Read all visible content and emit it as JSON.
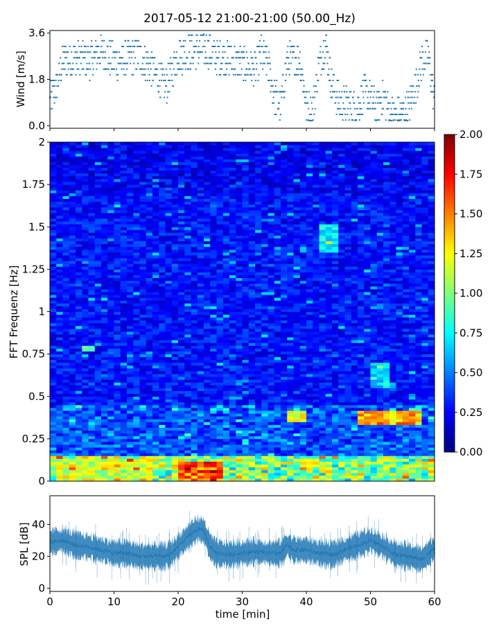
{
  "title": "2017-05-12 21:00-21:00 (50.00_Hz)",
  "colors": {
    "series": "#1f77b4",
    "colormap": [
      "#00007f",
      "#0000ff",
      "#007fff",
      "#00ffff",
      "#7fff7f",
      "#ffff00",
      "#ff7f00",
      "#ff0000",
      "#7f0000"
    ]
  },
  "chart_data": [
    {
      "type": "scatter",
      "panel": "wind",
      "ylabel": "Wind [m/s]",
      "xlabel": "",
      "xlim": [
        0,
        60
      ],
      "ylim": [
        -0.1,
        3.7
      ],
      "yticks": [
        "0.0",
        "1.8",
        "3.6"
      ],
      "ytick_values": [
        0.0,
        1.8,
        3.6
      ],
      "xticks": [
        0,
        10,
        20,
        30,
        40,
        50,
        60
      ],
      "trend": {
        "x": [
          0,
          1,
          2,
          4,
          6,
          8,
          10,
          12,
          14,
          16,
          18,
          20,
          22,
          24,
          26,
          28,
          30,
          32,
          33,
          34,
          35,
          36,
          37,
          38,
          39,
          40,
          41,
          42,
          43,
          44,
          45,
          46,
          47,
          48,
          49,
          50,
          51,
          52,
          53,
          54,
          55,
          56,
          57,
          58,
          59,
          60
        ],
        "y": [
          0.9,
          1.5,
          2.5,
          2.6,
          2.5,
          2.9,
          2.5,
          2.6,
          2.7,
          2.2,
          1.5,
          2.7,
          2.9,
          3.0,
          2.7,
          2.6,
          2.4,
          2.2,
          2.8,
          2.4,
          1.2,
          0.8,
          2.5,
          2.6,
          2.6,
          0.8,
          0.6,
          2.4,
          3.2,
          1.6,
          1.0,
          0.8,
          0.8,
          0.7,
          1.3,
          1.1,
          0.6,
          1.2,
          0.5,
          0.4,
          0.5,
          0.7,
          1.5,
          2.5,
          2.7,
          1.0
        ]
      }
    },
    {
      "type": "heatmap",
      "panel": "spectrogram",
      "ylabel": "FFT Frequenz [Hz]",
      "xlabel": "",
      "xlim": [
        0,
        60
      ],
      "ylim": [
        0,
        2
      ],
      "yticks": [
        "0",
        "0.25",
        "0.5",
        "0.75",
        "1",
        "1.25",
        "1.5",
        "1.75",
        "2"
      ],
      "ytick_values": [
        0,
        0.25,
        0.5,
        0.75,
        1,
        1.25,
        1.5,
        1.75,
        2
      ],
      "colorbar": {
        "min": 0,
        "max": 2,
        "ticks": [
          "0.00",
          "0.25",
          "0.50",
          "0.75",
          "1.00",
          "1.25",
          "1.50",
          "1.75",
          "2.00"
        ],
        "tick_values": [
          0,
          0.25,
          0.5,
          0.75,
          1,
          1.25,
          1.5,
          1.75,
          2
        ]
      },
      "features": [
        {
          "t0": 42,
          "t1": 45,
          "f0": 1.35,
          "f1": 1.52,
          "level": 0.8
        },
        {
          "t0": 20,
          "t1": 27,
          "f0": 0,
          "f1": 0.12,
          "level": 1.7
        },
        {
          "t0": 1,
          "t1": 16,
          "f0": 0,
          "f1": 0.14,
          "level": 1.2
        },
        {
          "t0": 48,
          "t1": 58,
          "f0": 0.33,
          "f1": 0.42,
          "level": 1.5
        },
        {
          "t0": 50,
          "t1": 53,
          "f0": 0.55,
          "f1": 0.7,
          "level": 0.7
        },
        {
          "t0": 37,
          "t1": 40,
          "f0": 0.35,
          "f1": 0.42,
          "level": 1.4
        },
        {
          "t0": 5,
          "t1": 7,
          "f0": 0.76,
          "f1": 0.8,
          "level": 1.0
        }
      ]
    },
    {
      "type": "area",
      "panel": "spl",
      "ylabel": "SPL [dB]",
      "xlabel": "time [min]",
      "xlim": [
        0,
        60
      ],
      "ylim": [
        -2,
        58
      ],
      "yticks": [
        "0",
        "20",
        "40"
      ],
      "ytick_values": [
        0,
        20,
        40
      ],
      "xticks": [
        "0",
        "10",
        "20",
        "30",
        "40",
        "50",
        "60"
      ],
      "xtick_values": [
        0,
        10,
        20,
        30,
        40,
        50,
        60
      ],
      "trend": {
        "x": [
          0,
          2,
          4,
          6,
          8,
          10,
          12,
          14,
          16,
          18,
          19,
          20,
          21,
          22,
          23,
          24,
          25,
          26,
          28,
          30,
          32,
          34,
          36,
          37,
          38,
          40,
          42,
          44,
          46,
          48,
          50,
          52,
          54,
          56,
          58,
          60
        ],
        "y": [
          29,
          30,
          27,
          26,
          24,
          22,
          22,
          20,
          20,
          20,
          22,
          26,
          30,
          34,
          37,
          36,
          26,
          22,
          21,
          22,
          23,
          22,
          22,
          27,
          24,
          24,
          22,
          21,
          24,
          27,
          30,
          26,
          21,
          20,
          18,
          25
        ]
      }
    }
  ]
}
